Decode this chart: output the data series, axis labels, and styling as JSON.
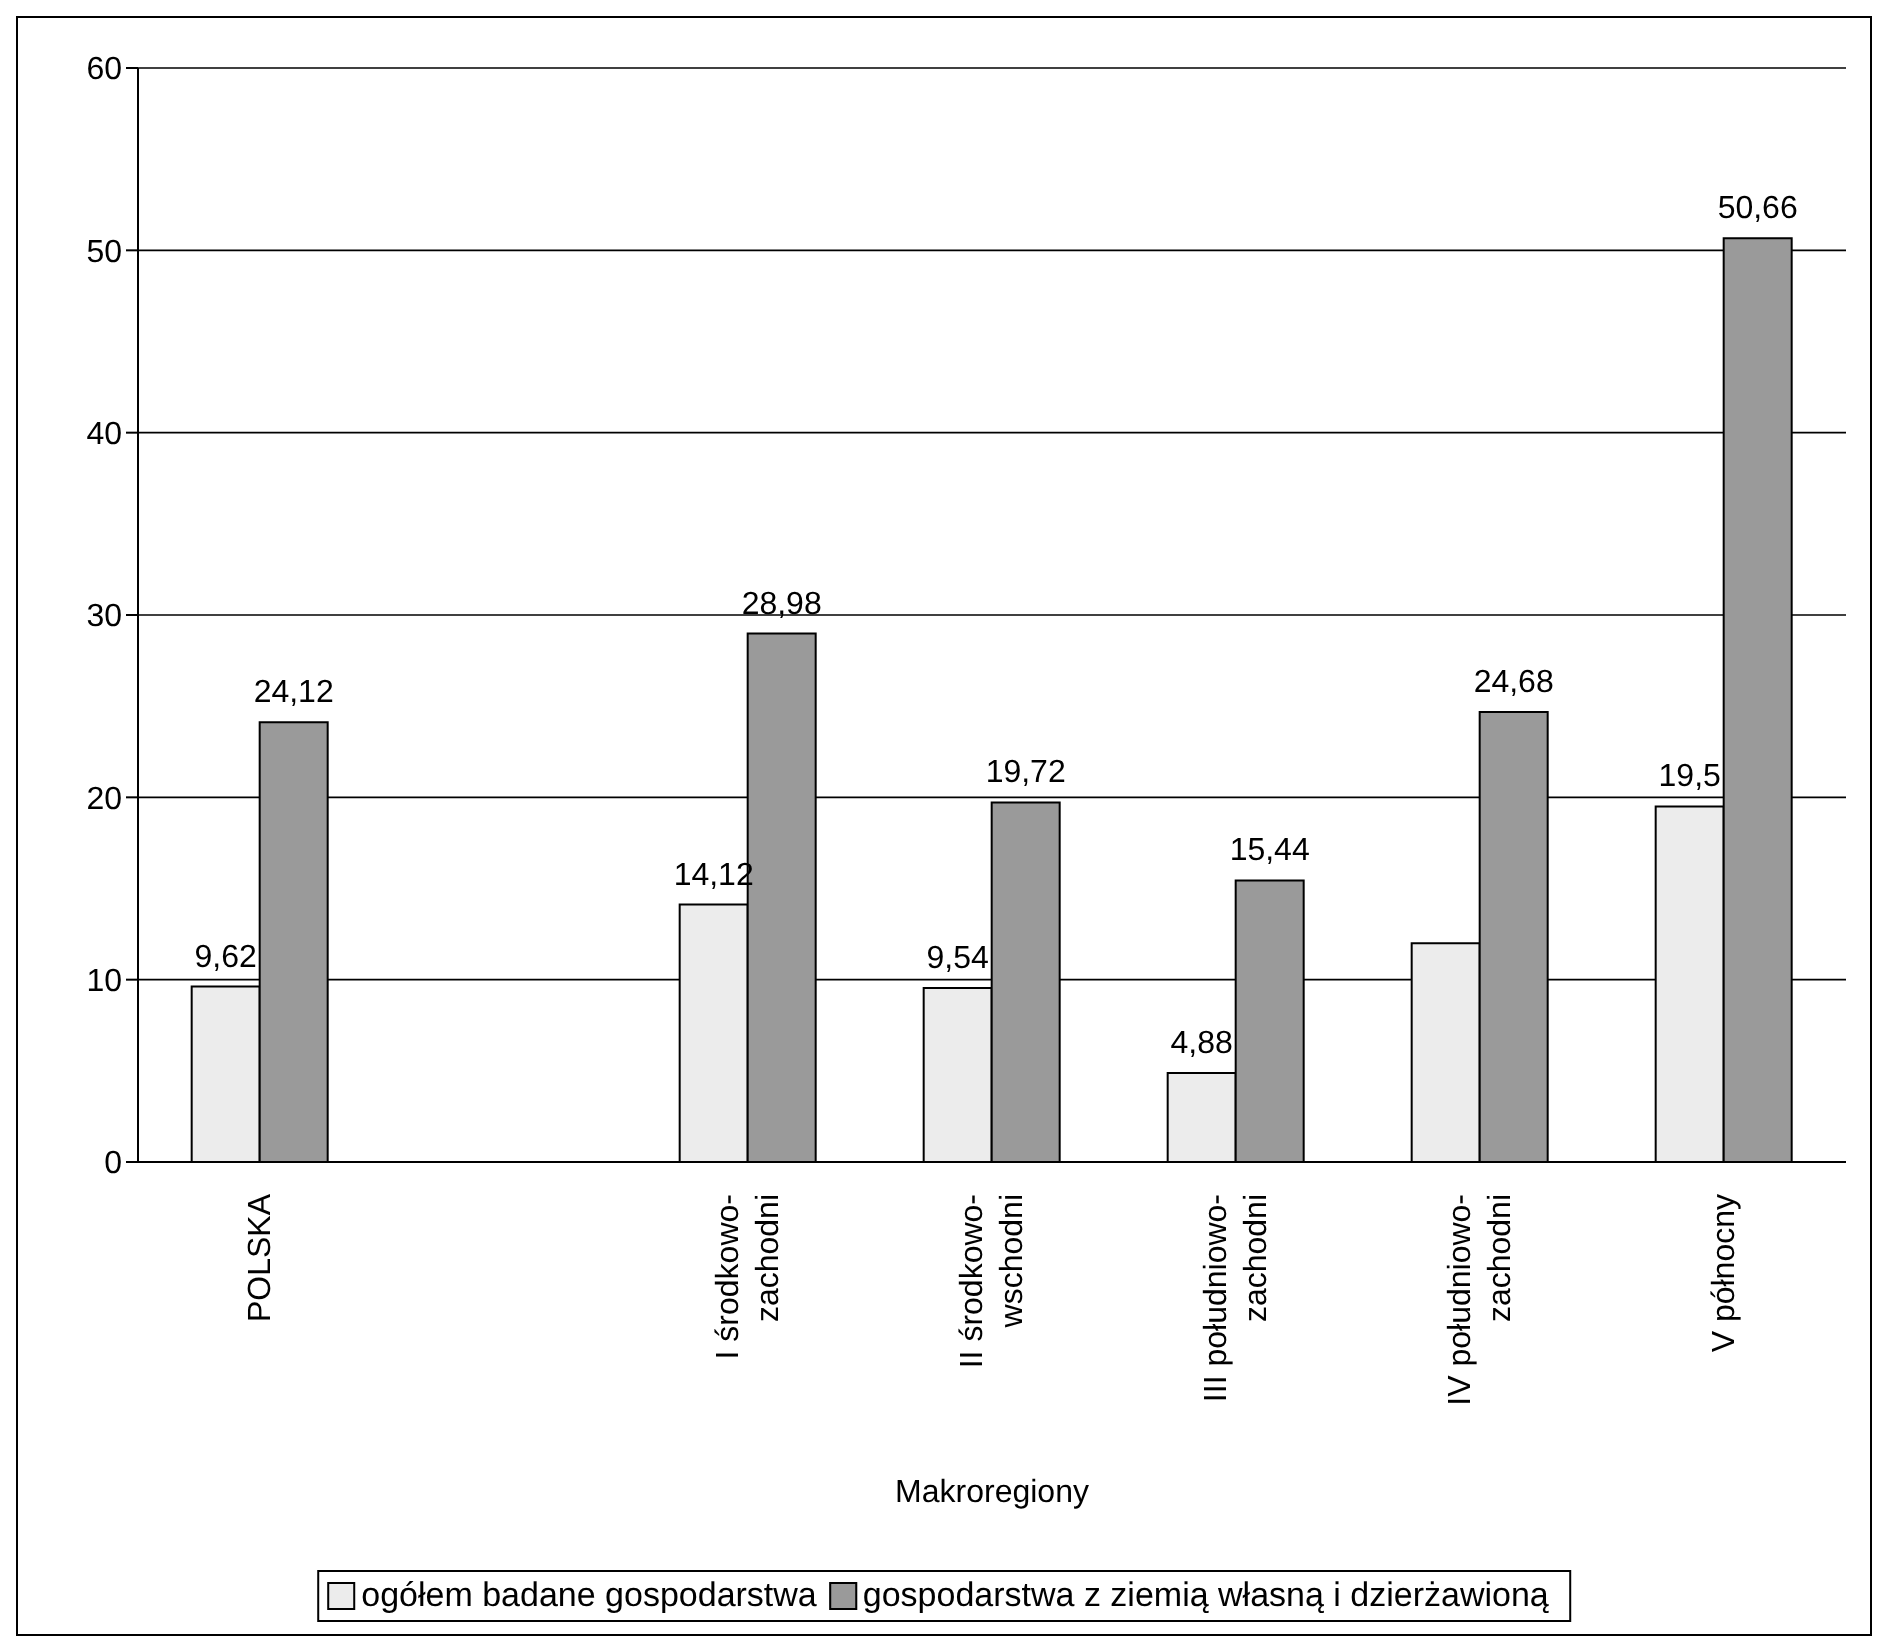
{
  "chart_data": {
    "type": "bar",
    "xlabel": "Makroregiony",
    "categories": [
      "POLSKA",
      null,
      "I środkowo-zachodni",
      "II środkowo-wschodni",
      "III południowo-zachodni",
      "IV południowo-zachodni",
      "V północny"
    ],
    "series": [
      {
        "name": "ogółem badane gospodarstwa",
        "color": "#ececec",
        "values": [
          9.62,
          null,
          14.12,
          9.54,
          4.88,
          12,
          19.5
        ],
        "value_labels": [
          "9,62",
          null,
          "14,12",
          "9,54",
          "4,88",
          null,
          "19,5"
        ]
      },
      {
        "name": "gospodarstwa z ziemią własną i dzierżawioną",
        "color": "#9a9a9a",
        "values": [
          24.12,
          null,
          28.98,
          19.72,
          15.44,
          24.68,
          50.66
        ],
        "value_labels": [
          "24,12",
          null,
          "28,98",
          "19,72",
          "15,44",
          "24,68",
          "50,66"
        ]
      }
    ],
    "ylim": [
      0,
      60
    ],
    "yticks": [
      0,
      10,
      20,
      30,
      40,
      50,
      60
    ],
    "grid": "y",
    "legend": "bottom"
  }
}
